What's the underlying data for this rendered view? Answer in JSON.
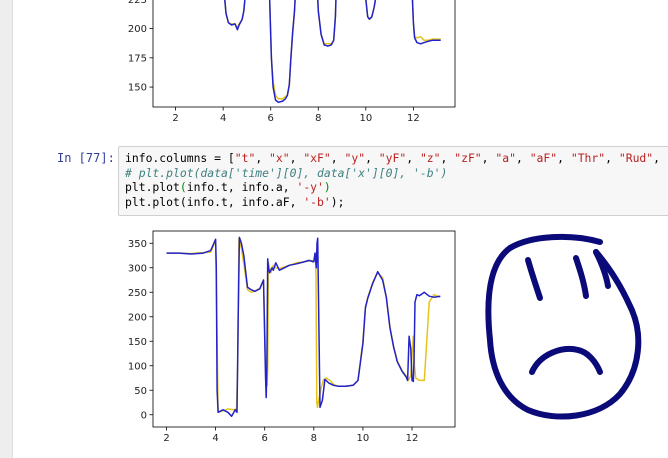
{
  "cell": {
    "prompt": "In [77]:",
    "line1_code": "info.columns = [",
    "line1_strings": [
      "\"t\"",
      "\"x\"",
      "\"xF\"",
      "\"y\"",
      "\"yF\"",
      "\"z\"",
      "\"zF\"",
      "\"a\"",
      "\"aF\"",
      "\"Thr\"",
      "\"Rud\""
    ],
    "line2": "# plt.plot(data['time'][0], data['x'][0], '-b')",
    "line3_start": "plt.plot",
    "line3_args": "info.t, info.a, ",
    "line3_str": "'-y'",
    "line4_start": "plt.plot(info.t, info.aF, ",
    "line4_str": "'-b'",
    "line4_end": ");"
  },
  "chart_data": [
    {
      "type": "line",
      "title": "",
      "xlabel": "",
      "ylabel": "",
      "xlim": [
        1.05,
        13.75
      ],
      "ylim": [
        133,
        250
      ],
      "xticks": [
        "2",
        "4",
        "6",
        "8",
        "10",
        "12"
      ],
      "yticks": [
        "150",
        "175",
        "200",
        "225"
      ],
      "series": [
        {
          "color": "#e6c419",
          "x": [
            3.97,
            4.02,
            4.12,
            4.22,
            4.35,
            4.5,
            4.6,
            4.7,
            4.75,
            4.8,
            4.87,
            4.95,
            5.0
          ],
          "y": [
            250,
            236,
            213,
            205,
            204,
            204,
            201,
            205,
            206,
            208,
            215,
            232,
            250
          ]
        },
        {
          "color": "#2222c8",
          "x": [
            3.97,
            4.02,
            4.12,
            4.22,
            4.35,
            4.5,
            4.6,
            4.67,
            4.75,
            4.8,
            4.87,
            4.95,
            5.0
          ],
          "y": [
            250,
            236,
            213,
            205,
            203,
            204,
            199,
            203,
            206,
            208,
            215,
            232,
            250
          ]
        },
        {
          "color": "#e6c419",
          "x": [
            5.92,
            5.97,
            6.03,
            6.1,
            6.2,
            6.32,
            6.5,
            6.62,
            6.7,
            6.78,
            6.85,
            6.92,
            7.0,
            7.05,
            7.1
          ],
          "y": [
            250,
            215,
            175,
            155,
            143,
            140,
            140,
            142,
            143,
            152,
            175,
            196,
            215,
            235,
            250
          ]
        },
        {
          "color": "#2222c8",
          "x": [
            5.92,
            5.97,
            6.03,
            6.1,
            6.2,
            6.32,
            6.5,
            6.62,
            6.7,
            6.78,
            6.85,
            6.92,
            7.0,
            7.05,
            7.1
          ],
          "y": [
            250,
            215,
            175,
            150,
            139,
            137,
            138,
            140,
            143,
            152,
            175,
            196,
            215,
            235,
            250
          ]
        },
        {
          "color": "#e6c419",
          "x": [
            7.92,
            8.0,
            8.12,
            8.25,
            8.4,
            8.55,
            8.65,
            8.72,
            8.78
          ],
          "y": [
            250,
            215,
            195,
            187,
            187,
            187,
            190,
            210,
            250
          ]
        },
        {
          "color": "#2222c8",
          "x": [
            7.92,
            8.0,
            8.12,
            8.25,
            8.4,
            8.55,
            8.65,
            8.72,
            8.78
          ],
          "y": [
            250,
            215,
            195,
            186,
            185,
            186,
            190,
            210,
            250
          ]
        },
        {
          "color": "#e6c419",
          "x": [
            9.92,
            10.0,
            10.08,
            10.15,
            10.25,
            10.35,
            10.45,
            10.55,
            10.65
          ],
          "y": [
            250,
            225,
            210,
            208,
            210,
            218,
            230,
            240,
            250
          ]
        },
        {
          "color": "#2222c8",
          "x": [
            9.92,
            10.0,
            10.08,
            10.15,
            10.25,
            10.35,
            10.45,
            10.55,
            10.65
          ],
          "y": [
            250,
            225,
            210,
            208,
            210,
            218,
            230,
            240,
            250
          ]
        },
        {
          "color": "#e6c419",
          "x": [
            11.9,
            11.95,
            12.0,
            12.05,
            12.15,
            12.3,
            12.45,
            12.6,
            12.8,
            13.0,
            13.15
          ],
          "y": [
            250,
            230,
            205,
            193,
            192,
            193,
            190,
            190,
            191,
            191,
            191
          ]
        },
        {
          "color": "#2222c8",
          "x": [
            11.9,
            11.95,
            12.0,
            12.05,
            12.15,
            12.3,
            12.45,
            12.6,
            12.8,
            13.0,
            13.15
          ],
          "y": [
            250,
            230,
            205,
            192,
            188,
            187,
            188,
            189,
            190,
            190,
            190
          ]
        }
      ]
    },
    {
      "type": "line",
      "title": "",
      "xlabel": "",
      "ylabel": "",
      "xlim": [
        1.45,
        13.75
      ],
      "ylim": [
        -25,
        375
      ],
      "xticks": [
        "2",
        "4",
        "6",
        "8",
        "10",
        "12"
      ],
      "yticks": [
        "0",
        "50",
        "100",
        "150",
        "200",
        "250",
        "300",
        "350"
      ],
      "series": [
        {
          "color": "#e6c419",
          "x": [
            2.0,
            2.5,
            3.0,
            3.5,
            3.8,
            4.0,
            4.05,
            4.1,
            4.3,
            4.5,
            4.7,
            4.85,
            4.9,
            4.95,
            5.05,
            5.2,
            5.3,
            5.45,
            5.6,
            5.8,
            5.95,
            6.05,
            6.1,
            6.12,
            6.15,
            6.25,
            6.3,
            6.35,
            6.45,
            6.6,
            6.8,
            7.0,
            7.3,
            7.6,
            7.8,
            8.0,
            8.08,
            8.12,
            8.15,
            8.2,
            8.3,
            8.4,
            8.5,
            8.65,
            8.8,
            9.0,
            9.3,
            9.6,
            9.8,
            10.0,
            10.1,
            10.2,
            10.4,
            10.6,
            10.8,
            10.95,
            11.1,
            11.25,
            11.4,
            11.6,
            11.75,
            11.85,
            11.95,
            12.05,
            12.1,
            12.15,
            12.3,
            12.5,
            12.7,
            12.9,
            13.15
          ],
          "y": [
            330,
            330,
            329,
            331,
            332,
            355,
            200,
            5,
            8,
            12,
            10,
            12,
            100,
            360,
            340,
            290,
            255,
            250,
            252,
            258,
            275,
            80,
            60,
            100,
            310,
            290,
            300,
            305,
            300,
            298,
            302,
            305,
            310,
            312,
            314,
            315,
            330,
            25,
            15,
            30,
            55,
            72,
            75,
            70,
            62,
            58,
            58,
            60,
            70,
            150,
            220,
            240,
            270,
            290,
            280,
            240,
            180,
            140,
            110,
            90,
            80,
            70,
            80,
            160,
            100,
            75,
            70,
            70,
            230,
            245,
            240
          ]
        },
        {
          "color": "#2222c8",
          "x": [
            2.0,
            2.5,
            3.0,
            3.5,
            3.8,
            4.0,
            4.03,
            4.06,
            4.1,
            4.3,
            4.5,
            4.65,
            4.8,
            4.87,
            4.92,
            4.97,
            5.05,
            5.15,
            5.3,
            5.45,
            5.6,
            5.8,
            5.95,
            6.03,
            6.06,
            6.09,
            6.12,
            6.15,
            6.2,
            6.3,
            6.35,
            6.45,
            6.6,
            6.8,
            7.0,
            7.3,
            7.6,
            7.8,
            8.0,
            8.05,
            8.1,
            8.13,
            8.16,
            8.25,
            8.35,
            8.45,
            8.5,
            8.6,
            8.8,
            9.0,
            9.3,
            9.6,
            9.8,
            10.0,
            10.1,
            10.2,
            10.4,
            10.6,
            10.8,
            10.95,
            11.1,
            11.25,
            11.4,
            11.6,
            11.75,
            11.82,
            11.88,
            11.95,
            12.0,
            12.05,
            12.08,
            12.12,
            12.2,
            12.3,
            12.5,
            12.7,
            12.9,
            13.15
          ],
          "y": [
            330,
            330,
            328,
            330,
            335,
            358,
            300,
            50,
            5,
            10,
            5,
            -3,
            10,
            5,
            200,
            362,
            350,
            325,
            260,
            255,
            252,
            257,
            275,
            80,
            35,
            100,
            318,
            300,
            290,
            300,
            295,
            310,
            295,
            300,
            305,
            308,
            312,
            315,
            312,
            330,
            300,
            350,
            360,
            15,
            30,
            72,
            70,
            65,
            60,
            58,
            58,
            60,
            70,
            145,
            218,
            238,
            268,
            292,
            275,
            240,
            178,
            138,
            108,
            88,
            78,
            70,
            160,
            135,
            70,
            68,
            110,
            230,
            245,
            243,
            250,
            242,
            240,
            242
          ]
        }
      ]
    }
  ]
}
